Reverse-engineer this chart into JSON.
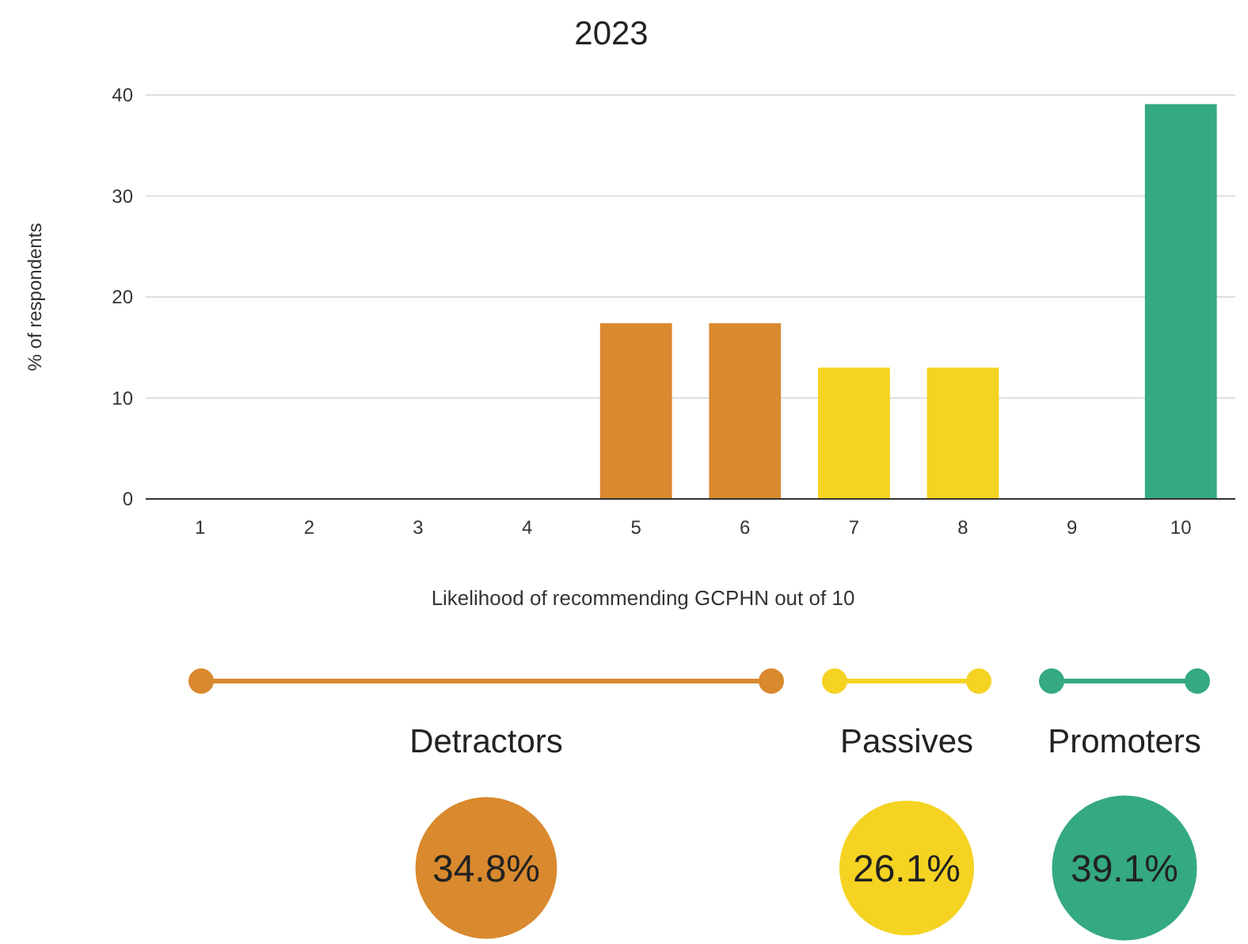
{
  "chart_data": [
    {
      "type": "bar",
      "title": "2023",
      "xlabel": "Likelihood of recommending GCPHN out of 10",
      "ylabel": "% of respondents",
      "categories": [
        "1",
        "2",
        "3",
        "4",
        "5",
        "6",
        "7",
        "8",
        "9",
        "10"
      ],
      "values": [
        0,
        0,
        0,
        0,
        17.4,
        17.4,
        13.0,
        13.0,
        0,
        39.1
      ],
      "colors": [
        "#d9892e",
        "#d9892e",
        "#d9892e",
        "#d9892e",
        "#d9892e",
        "#d9892e",
        "#f5d322",
        "#f5d322",
        "#34a982",
        "#34a982"
      ],
      "ylim": [
        0,
        40
      ],
      "yticks": [
        0,
        10,
        20,
        30,
        40
      ],
      "grid": "y"
    },
    {
      "type": "other",
      "categories": [
        "Detractors",
        "Passives",
        "Promoters"
      ],
      "values": [
        34.8,
        26.1,
        39.1
      ],
      "value_labels": [
        "34.8%",
        "26.1%",
        "39.1%"
      ],
      "colors": [
        "#d9892e",
        "#f5d322",
        "#34a982"
      ]
    }
  ]
}
